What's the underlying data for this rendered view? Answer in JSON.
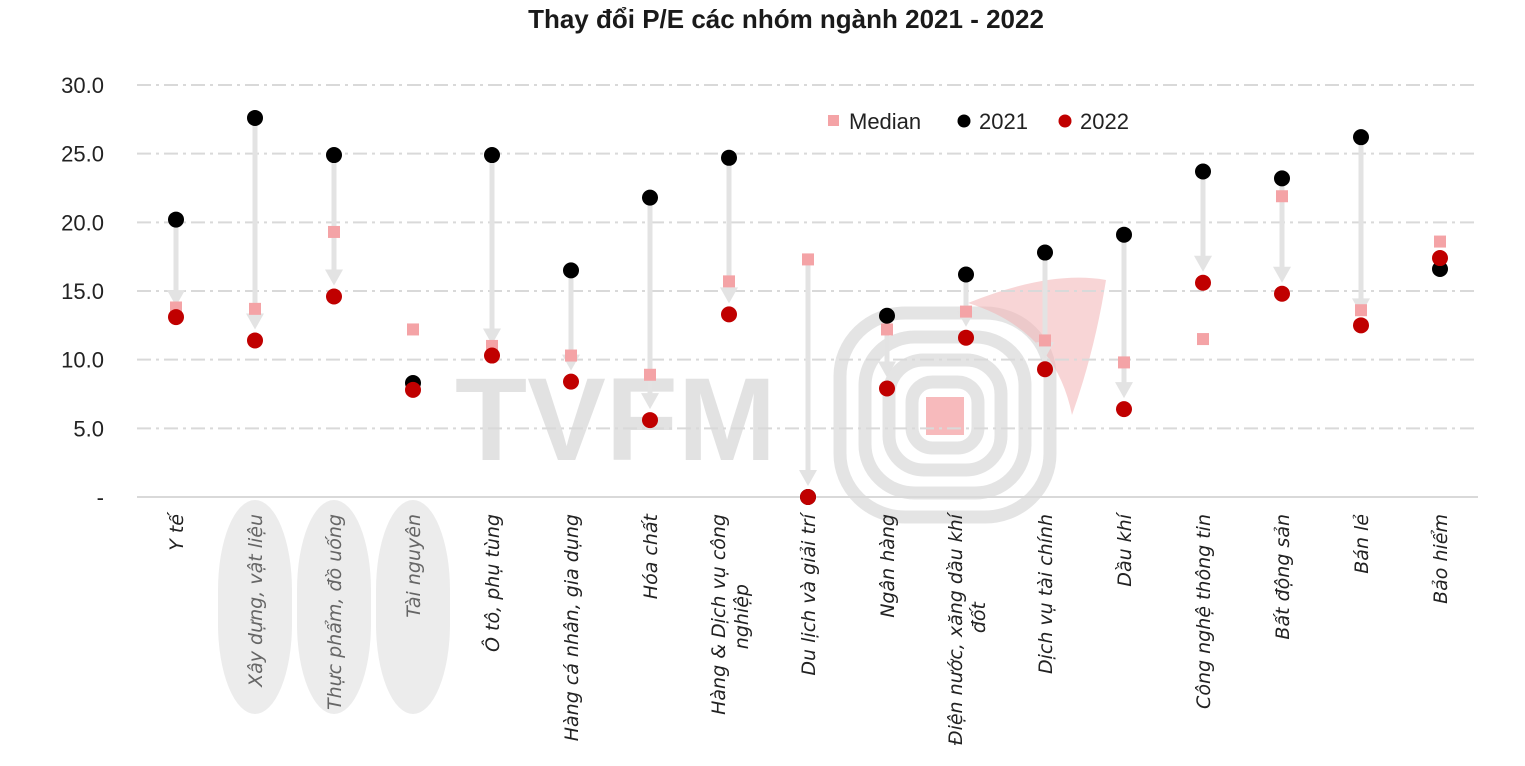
{
  "chart_data": {
    "type": "scatter",
    "title": "Thay đổi P/E các nhóm ngành 2021 - 2022",
    "categories": [
      "Y tế",
      "Xây dựng, vật liệu",
      "Thực phẩm, đồ uống",
      "Tài nguyên",
      "Ô tô, phụ tùng",
      "Hàng cá nhân, gia dụng",
      "Hóa chất",
      "Hàng & Dịch vụ công nghiệp",
      "Du lịch và giải trí",
      "Ngân hàng",
      "Điện nước, xăng dầu khí đốt",
      "Dịch vụ tài chính",
      "Dầu khí",
      "Công nghệ thông tin",
      "Bất động sản",
      "Bán lẻ",
      "Bảo hiểm"
    ],
    "highlighted_categories": [
      "Xây dựng, vật liệu",
      "Thực phẩm, đồ uống",
      "Tài nguyên"
    ],
    "series": [
      {
        "name": "Median",
        "marker": "square",
        "color": "#f4a3a6",
        "values": [
          13.8,
          13.7,
          19.3,
          12.2,
          11.0,
          10.3,
          8.9,
          15.7,
          17.3,
          12.2,
          13.5,
          11.4,
          9.8,
          11.5,
          21.9,
          13.6,
          18.6
        ]
      },
      {
        "name": "2021",
        "marker": "circle",
        "color": "#000000",
        "values": [
          20.2,
          27.6,
          24.9,
          8.3,
          24.9,
          16.5,
          21.8,
          24.7,
          0,
          13.2,
          16.2,
          17.8,
          19.1,
          23.7,
          23.2,
          26.2,
          16.6
        ]
      },
      {
        "name": "2022",
        "marker": "circle",
        "color": "#c00000",
        "values": [
          13.1,
          11.4,
          14.6,
          7.8,
          10.3,
          8.4,
          5.6,
          13.3,
          0,
          7.9,
          11.6,
          9.3,
          6.4,
          15.6,
          14.8,
          12.5,
          17.4
        ]
      }
    ],
    "y_ticks": [
      "30.0",
      "25.0",
      "20.0",
      "15.0",
      "10.0",
      "5.0",
      "-"
    ],
    "ylim": [
      0,
      30
    ],
    "grid": true,
    "legend_position": "top-right",
    "arrow_color": "#e3e3e3",
    "watermark": "TVFM"
  }
}
